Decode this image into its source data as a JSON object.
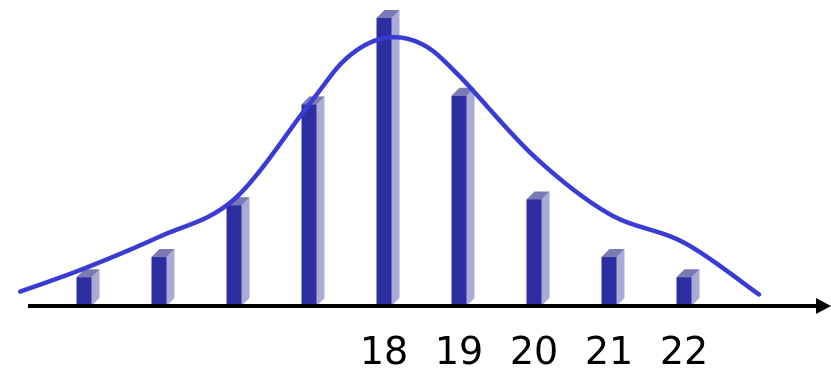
{
  "chart_data": {
    "type": "bar",
    "title": "",
    "xlabel": "",
    "ylabel": "",
    "categories": [
      "",
      "",
      "",
      "",
      "18",
      "19",
      "20",
      "21",
      "22"
    ],
    "values": [
      10,
      17,
      35,
      70,
      100,
      73,
      37,
      17,
      10
    ],
    "curve": [
      [
        -0.85,
        5
      ],
      [
        0,
        13
      ],
      [
        1,
        24
      ],
      [
        2,
        37
      ],
      [
        3,
        70
      ],
      [
        3.5,
        86
      ],
      [
        4,
        93
      ],
      [
        4.5,
        91
      ],
      [
        5,
        80
      ],
      [
        6,
        52
      ],
      [
        7,
        32
      ],
      [
        8,
        22
      ],
      [
        9,
        4
      ]
    ],
    "ylim": [
      0,
      100
    ],
    "colors": {
      "bar_front": "#2e2ea3",
      "bar_side": "#aaaad8",
      "bar_top": "#7a7ab4",
      "curve": "#3a3ad4",
      "axis": "#000000"
    },
    "grid": false,
    "legend": "none"
  }
}
